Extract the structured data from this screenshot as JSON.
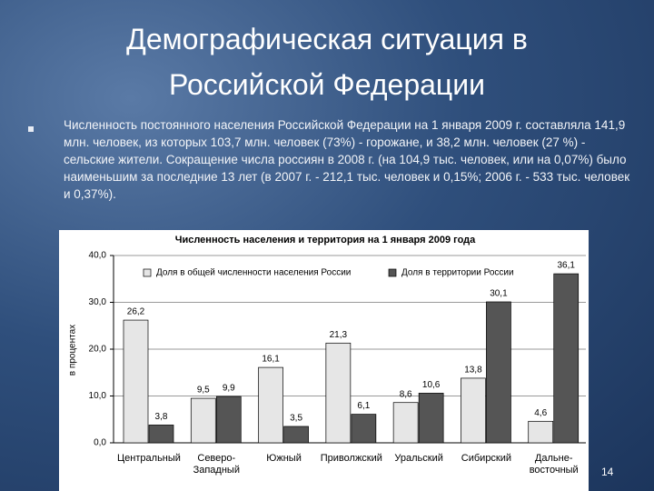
{
  "slide": {
    "title": "Демографическая ситуация в Российской Федерации",
    "bullet": "Численность постоянного населения Российской Федерации на 1 января 2009 г. составляла 141,9 млн. человек, из которых 103,7 млн. человек (73%) - горожане, и 38,2 млн. человек (27 %) - сельские жители. Сокращение числа россиян в 2008 г. (на 104,9 тыс. человек, или на 0,07%) было наименьшим за последние 13 лет (в 2007 г. - 212,1 тыс. человек и 0,15%; 2006 г. - 533 тыс. человек и 0,37%).",
    "page_number": "14"
  },
  "chart_data": {
    "type": "bar",
    "title": "Численность населения и территория на 1 января 2009 года",
    "y_label": "в процентах",
    "categories": [
      "Центральный",
      "Северо-Западный",
      "Южный",
      "Приволжский",
      "Уральский",
      "Сибирский",
      "Дальне-восточный"
    ],
    "series": [
      {
        "name": "Доля в общей численности населения России",
        "color": "#e6e6e6",
        "values": [
          26.2,
          9.5,
          16.1,
          21.3,
          8.6,
          13.8,
          4.6
        ],
        "value_labels": [
          "26,2",
          "9,5",
          "16,1",
          "21,3",
          "8,6",
          "13,8",
          "4,6"
        ]
      },
      {
        "name": "Доля в территории России",
        "color": "#555555",
        "values": [
          3.8,
          9.9,
          3.5,
          6.1,
          10.6,
          30.1,
          36.1
        ],
        "value_labels": [
          "3,8",
          "9,9",
          "3,5",
          "6,1",
          "10,6",
          "30,1",
          "36,1"
        ]
      }
    ],
    "ylim": [
      0,
      40
    ],
    "yticks": [
      {
        "value": 0,
        "label": "0,0"
      },
      {
        "value": 10,
        "label": "10,0"
      },
      {
        "value": 20,
        "label": "20,0"
      },
      {
        "value": 30,
        "label": "30,0"
      },
      {
        "value": 40,
        "label": "40,0"
      }
    ],
    "grid": true
  }
}
